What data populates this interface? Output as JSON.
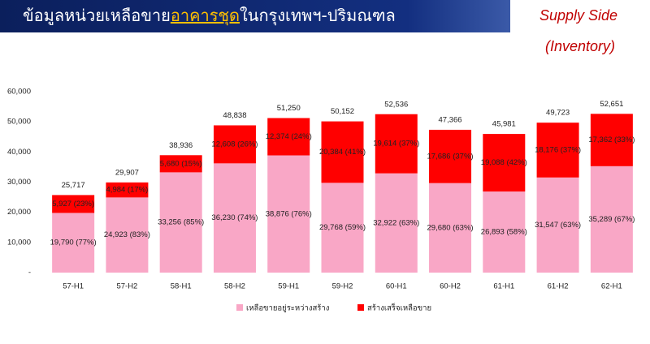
{
  "chart_data": {
    "type": "stacked_bar",
    "title_parts": [
      "ข้อมูลหน่วยเหลือขาย",
      "อาคารชุด",
      "ในกรุงเทพฯ-ปริมณฑล"
    ],
    "subtitle": [
      "Supply Side",
      "(Inventory)"
    ],
    "categories": [
      "57-H1",
      "57-H2",
      "58-H1",
      "58-H2",
      "59-H1",
      "59-H2",
      "60-H1",
      "60-H2",
      "61-H1",
      "61-H2",
      "62-H1"
    ],
    "series": [
      {
        "name": "เหลือขายอยู่ระหว่างสร้าง",
        "color": "#f9a7c6",
        "values": [
          19790,
          24923,
          33256,
          36230,
          38876,
          29768,
          32922,
          29680,
          26893,
          31547,
          35289
        ],
        "value_labels": [
          "19,790 (77%)",
          "24,923 (83%)",
          "33,256 (85%)",
          "36,230 (74%)",
          "38,876 (76%)",
          "29,768 (59%)",
          "32,922 (63%)",
          "29,680 (63%)",
          "26,893 (58%)",
          "31,547 (63%)",
          "35,289 (67%)"
        ]
      },
      {
        "name": "สร้างเสร็จเหลือขาย",
        "color": "#ff0000",
        "values": [
          5927,
          4984,
          5680,
          12608,
          12374,
          20384,
          19614,
          17686,
          19088,
          18176,
          17362
        ],
        "value_labels": [
          "5,927 (23%)",
          "4,984 (17%)",
          "5,680 (15%)",
          "12,608 (26%)",
          "12,374 (24%)",
          "20,384 (41%)",
          "19,614 (37%)",
          "17,686 (37%)",
          "19,088 (42%)",
          "18,176 (37%)",
          "17,362 (33%)"
        ]
      }
    ],
    "totals": {
      "color": "#2222cc",
      "values": [
        25717,
        29907,
        38936,
        48838,
        51250,
        50152,
        52536,
        47366,
        45981,
        49723,
        52651
      ],
      "value_labels": [
        "25,717",
        "29,907",
        "38,936",
        "48,838",
        "51,250",
        "50,152",
        "52,536",
        "47,366",
        "45,981",
        "49,723",
        "52,651"
      ]
    },
    "ylim": [
      0,
      60000
    ],
    "yticks": [
      {
        "value": 0,
        "label": "-"
      },
      {
        "value": 10000,
        "label": "10,000"
      },
      {
        "value": 20000,
        "label": "20,000"
      },
      {
        "value": 30000,
        "label": "30,000"
      },
      {
        "value": 40000,
        "label": "40,000"
      },
      {
        "value": 50000,
        "label": "50,000"
      },
      {
        "value": 60000,
        "label": "60,000"
      }
    ],
    "grid": false
  }
}
